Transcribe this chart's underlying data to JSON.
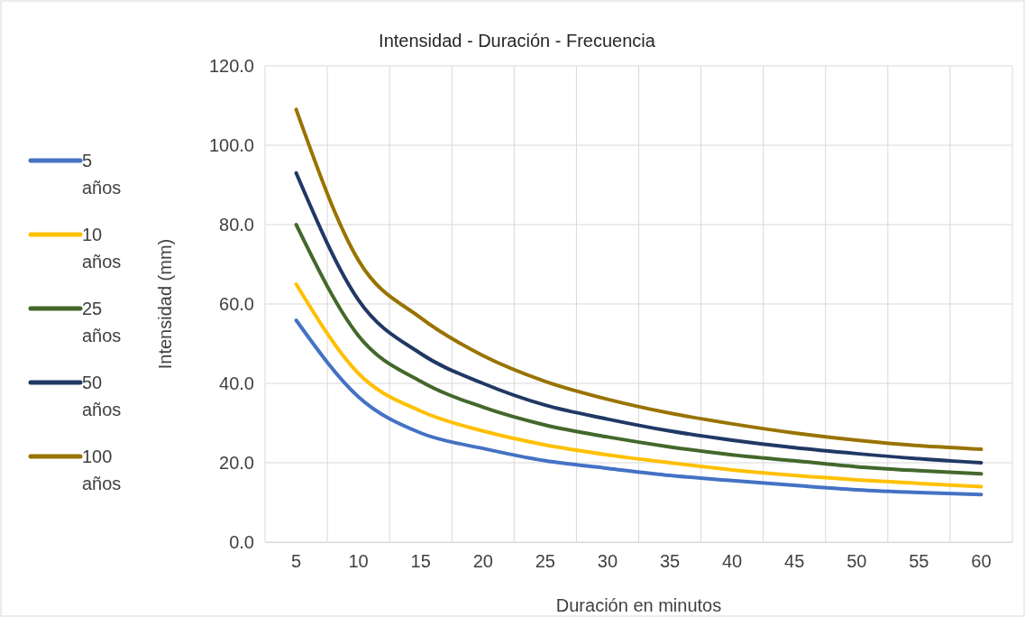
{
  "chart_data": {
    "type": "line",
    "title": "Intensidad - Duración - Frecuencia",
    "xlabel": "Duración en minutos",
    "ylabel": "Intensidad (mm)",
    "categories": [
      "5",
      "10",
      "15",
      "20",
      "25",
      "30",
      "35",
      "40",
      "45",
      "50",
      "55",
      "60"
    ],
    "series": [
      {
        "name": "5 años",
        "color": "#4472c4",
        "values": [
          55.9,
          36.6,
          27.5,
          23.6,
          20.5,
          18.6,
          16.8,
          15.5,
          14.3,
          13.2,
          12.5,
          12.0
        ]
      },
      {
        "name": "10 años",
        "color": "#ffc000",
        "values": [
          65.0,
          42.5,
          33.0,
          28.0,
          24.5,
          22.0,
          20.0,
          18.2,
          16.8,
          15.7,
          14.8,
          14.0
        ]
      },
      {
        "name": "25 años",
        "color": "#43682b",
        "values": [
          80.0,
          52.0,
          40.5,
          34.0,
          29.5,
          26.5,
          24.0,
          22.0,
          20.5,
          19.0,
          18.0,
          17.2
        ]
      },
      {
        "name": "50 años",
        "color": "#203864",
        "values": [
          93.0,
          61.0,
          47.5,
          40.0,
          34.5,
          31.0,
          28.0,
          25.7,
          23.8,
          22.3,
          21.0,
          20.0
        ]
      },
      {
        "name": "100 años",
        "color": "#997300",
        "values": [
          109.0,
          71.0,
          56.5,
          47.0,
          40.5,
          36.0,
          32.5,
          29.8,
          27.5,
          25.7,
          24.3,
          23.4
        ]
      }
    ],
    "ylim": [
      0,
      120
    ],
    "yticks": [
      {
        "value": 0,
        "label": "0.0"
      },
      {
        "value": 20,
        "label": "20.0"
      },
      {
        "value": 40,
        "label": "40.0"
      },
      {
        "value": 60,
        "label": "60.0"
      },
      {
        "value": 80,
        "label": "80.0"
      },
      {
        "value": 100,
        "label": "100.0"
      },
      {
        "value": 120,
        "label": "120.0"
      }
    ],
    "grid": true,
    "legend": "left",
    "line_style": "solid",
    "marker": "none"
  }
}
